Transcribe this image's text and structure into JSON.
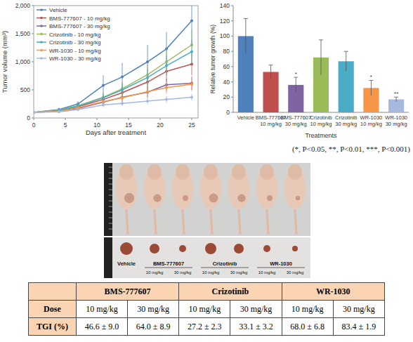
{
  "chart_data": [
    {
      "type": "line",
      "x_label": "Days after treatment",
      "y_label": "Tumor volume (mm³)",
      "x": [
        0,
        4,
        7,
        11,
        14,
        18,
        21,
        25
      ],
      "xlim": [
        0,
        26
      ],
      "xticks": [
        0,
        5,
        10,
        15,
        20,
        25
      ],
      "ylim": [
        0,
        2000
      ],
      "yticks": [
        0,
        500,
        {
          "value": 1000,
          "label": "1,000"
        },
        {
          "value": 1500,
          "label": "1,500"
        },
        {
          "value": 2000,
          "label": "2,000"
        }
      ],
      "legend": "top-left",
      "marker": "circle",
      "series": [
        {
          "name": "Vehicle",
          "color": "#4f81bd",
          "values": [
            100,
            150,
            250,
            580,
            730,
            1000,
            1230,
            1730
          ],
          "errors": [
            10,
            30,
            50,
            180,
            250,
            300,
            300,
            400
          ]
        },
        {
          "name": "BMS-777607 - 10 mg/kg",
          "color": "#c0504d",
          "values": [
            100,
            130,
            200,
            330,
            450,
            640,
            830,
            960
          ],
          "errors": [
            10,
            20,
            40,
            80,
            120,
            150,
            180,
            200
          ]
        },
        {
          "name": "BMS-777607 - 30 mg/kg",
          "color": "#8064a2",
          "values": [
            100,
            120,
            170,
            280,
            370,
            460,
            590,
            620
          ],
          "errors": [
            10,
            20,
            30,
            60,
            80,
            100,
            110,
            120
          ]
        },
        {
          "name": "Crizotinib - 10 mg/kg",
          "color": "#9bbb59",
          "values": [
            100,
            140,
            220,
            370,
            520,
            770,
            1000,
            1300
          ],
          "errors": [
            10,
            20,
            40,
            90,
            120,
            180,
            220,
            280
          ]
        },
        {
          "name": "Crizotinib - 30 mg/kg",
          "color": "#4bacc6",
          "values": [
            100,
            135,
            210,
            360,
            500,
            720,
            930,
            1180
          ],
          "errors": [
            10,
            20,
            40,
            80,
            110,
            150,
            180,
            220
          ]
        },
        {
          "name": "WR-1030 - 10 mg/kg",
          "color": "#f79646",
          "values": [
            100,
            120,
            180,
            290,
            360,
            470,
            540,
            600
          ],
          "errors": [
            10,
            20,
            30,
            60,
            80,
            100,
            110,
            120
          ]
        },
        {
          "name": "WR-1030 - 30 mg/kg",
          "color": "#a6b8e0",
          "values": [
            100,
            110,
            150,
            230,
            260,
            300,
            330,
            370
          ],
          "errors": [
            10,
            15,
            20,
            40,
            50,
            60,
            60,
            60
          ]
        }
      ]
    },
    {
      "type": "bar",
      "x_label": "Treatments",
      "y_label": "Relative tumor growth (%)",
      "categories": [
        "Vehicle",
        "BMS-777607 10 mg/kg",
        "BMS-777607 30 mg/kg",
        "Crizotinib 10 mg/kg",
        "Crizotinib 30 mg/kg",
        "WR-1030 10 mg/kg",
        "WR-1030 30 mg/kg"
      ],
      "values": [
        100,
        53,
        36,
        72,
        67,
        32,
        17
      ],
      "errors": [
        23,
        9,
        10,
        23,
        13,
        10,
        3
      ],
      "significance": [
        null,
        null,
        "*",
        null,
        null,
        "*",
        "**"
      ],
      "colors": [
        "#4f81bd",
        "#c0504d",
        "#8064a2",
        "#9bbb59",
        "#4bacc6",
        "#f79646",
        "#a6b8e0"
      ],
      "ylim": [
        0,
        140
      ],
      "yticks": [
        0,
        20,
        40,
        60,
        80,
        100,
        120,
        140
      ]
    }
  ],
  "footnote": "(*, P<0.05, **, P<0.01, ***, P<0.001)",
  "photo": {
    "groups": [
      {
        "label": "Vehicle"
      },
      {
        "label": "BMS-777607",
        "doses": [
          "10 mg/kg",
          "30 mg/kg"
        ]
      },
      {
        "label": "Crizotinib",
        "doses": [
          "10 mg/kg",
          "30 mg/kg"
        ]
      },
      {
        "label": "WR-1030",
        "doses": [
          "10 mg/kg",
          "30 mg/kg"
        ]
      }
    ]
  },
  "table": {
    "header": [
      "BMS-777607",
      "Crizotinib",
      "WR-1030"
    ],
    "rows": [
      [
        "Dose",
        "10 mg/kg",
        "30 mg/kg",
        "10 mg/kg",
        "30 mg/kg",
        "10 mg/kg",
        "30 mg/kg"
      ],
      [
        "TGI (%)",
        "46.6 ± 9.0",
        "64.0 ± 8.9",
        "27.2 ± 2.3",
        "33.1 ± 3.2",
        "68.0 ± 6.8",
        "83.4 ± 1.9"
      ]
    ]
  }
}
